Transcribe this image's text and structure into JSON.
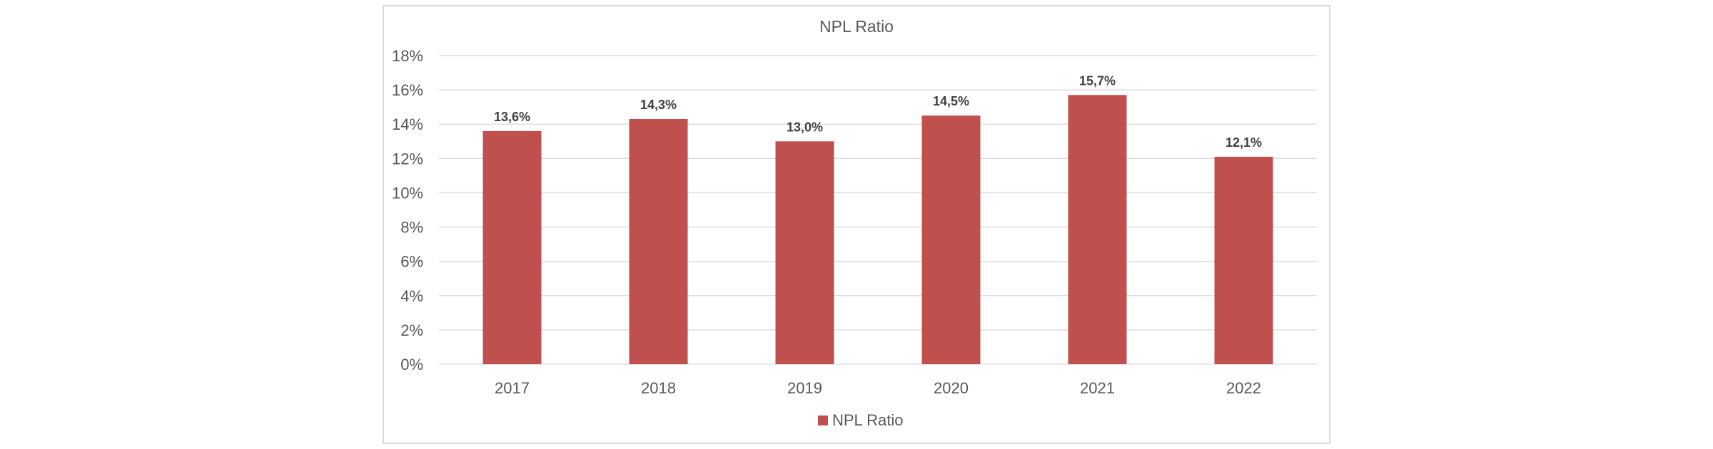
{
  "chart_data": {
    "type": "bar",
    "title": "NPL Ratio",
    "categories": [
      "2017",
      "2018",
      "2019",
      "2020",
      "2021",
      "2022"
    ],
    "series": [
      {
        "name": "NPL Ratio",
        "values": [
          13.6,
          14.3,
          13.0,
          14.5,
          15.7,
          12.1
        ],
        "labels": [
          "13,6%",
          "14,3%",
          "13,0%",
          "14,5%",
          "15,7%",
          "12,1%"
        ],
        "color": "#c0504d"
      }
    ],
    "ylim": [
      0,
      18
    ],
    "yticks": [
      {
        "value": 0,
        "label": "0%"
      },
      {
        "value": 2,
        "label": "2%"
      },
      {
        "value": 4,
        "label": "4%"
      },
      {
        "value": 6,
        "label": "6%"
      },
      {
        "value": 8,
        "label": "8%"
      },
      {
        "value": 10,
        "label": "10%"
      },
      {
        "value": 12,
        "label": "12%"
      },
      {
        "value": 14,
        "label": "14%"
      },
      {
        "value": 16,
        "label": "16%"
      },
      {
        "value": 18,
        "label": "18%"
      }
    ],
    "xlabel": "",
    "ylabel": "",
    "grid": true,
    "legend": "bottom-center",
    "gridline_color": "#d9d9d9"
  }
}
